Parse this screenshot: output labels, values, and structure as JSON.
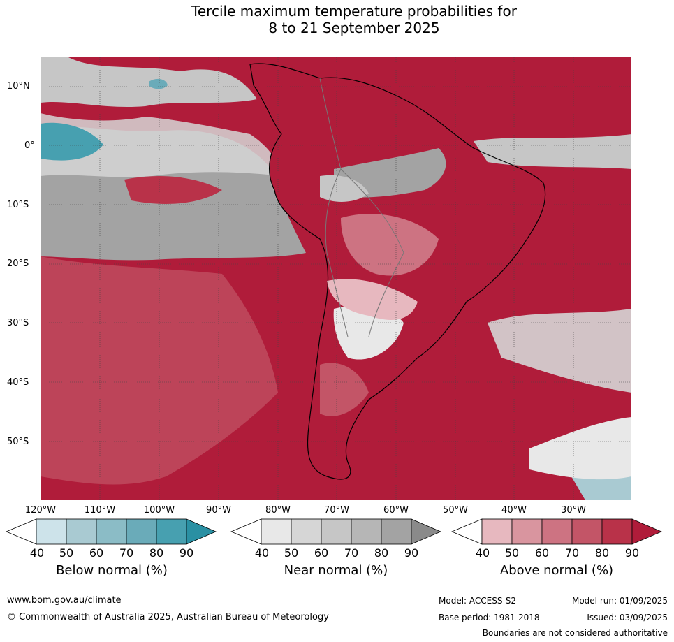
{
  "title_line1": "Tercile maximum temperature probabilities for",
  "title_line2": "8 to 21 September 2025",
  "lat_labels": [
    "10°N",
    "0°",
    "10°S",
    "20°S",
    "30°S",
    "40°S",
    "50°S"
  ],
  "lon_labels": [
    "120°W",
    "110°W",
    "100°W",
    "90°W",
    "80°W",
    "70°W",
    "60°W",
    "50°W",
    "40°W",
    "30°W"
  ],
  "colorbars": [
    {
      "label": "Below normal (%)",
      "ticks": [
        "40",
        "50",
        "60",
        "70",
        "80",
        "90"
      ],
      "colors": [
        "#ffffff",
        "#cde3ea",
        "#a9cad2",
        "#8bbcc6",
        "#6aabb9",
        "#47a0b0",
        "#2a90a3"
      ]
    },
    {
      "label": "Near normal (%)",
      "ticks": [
        "40",
        "50",
        "60",
        "70",
        "80",
        "90"
      ],
      "colors": [
        "#ffffff",
        "#e8e8e8",
        "#d6d6d6",
        "#c6c6c6",
        "#b6b6b6",
        "#a3a3a3",
        "#8a8a8a"
      ]
    },
    {
      "label": "Above normal (%)",
      "ticks": [
        "40",
        "50",
        "60",
        "70",
        "80",
        "90"
      ],
      "colors": [
        "#ffffff",
        "#e7b8bf",
        "#d9959f",
        "#cd7382",
        "#c35567",
        "#b93249",
        "#b01c3a"
      ]
    }
  ],
  "footer": {
    "website": "www.bom.gov.au/climate",
    "copyright": "© Commonwealth of Australia 2025, Australian Bureau of Meteorology",
    "model": "Model: ACCESS-S2",
    "base_period": "Base period: 1981-2018",
    "model_run": "Model run: 01/09/2025",
    "issued": "Issued: 03/09/2025",
    "disclaimer": "Boundaries are not considered authoritative"
  }
}
